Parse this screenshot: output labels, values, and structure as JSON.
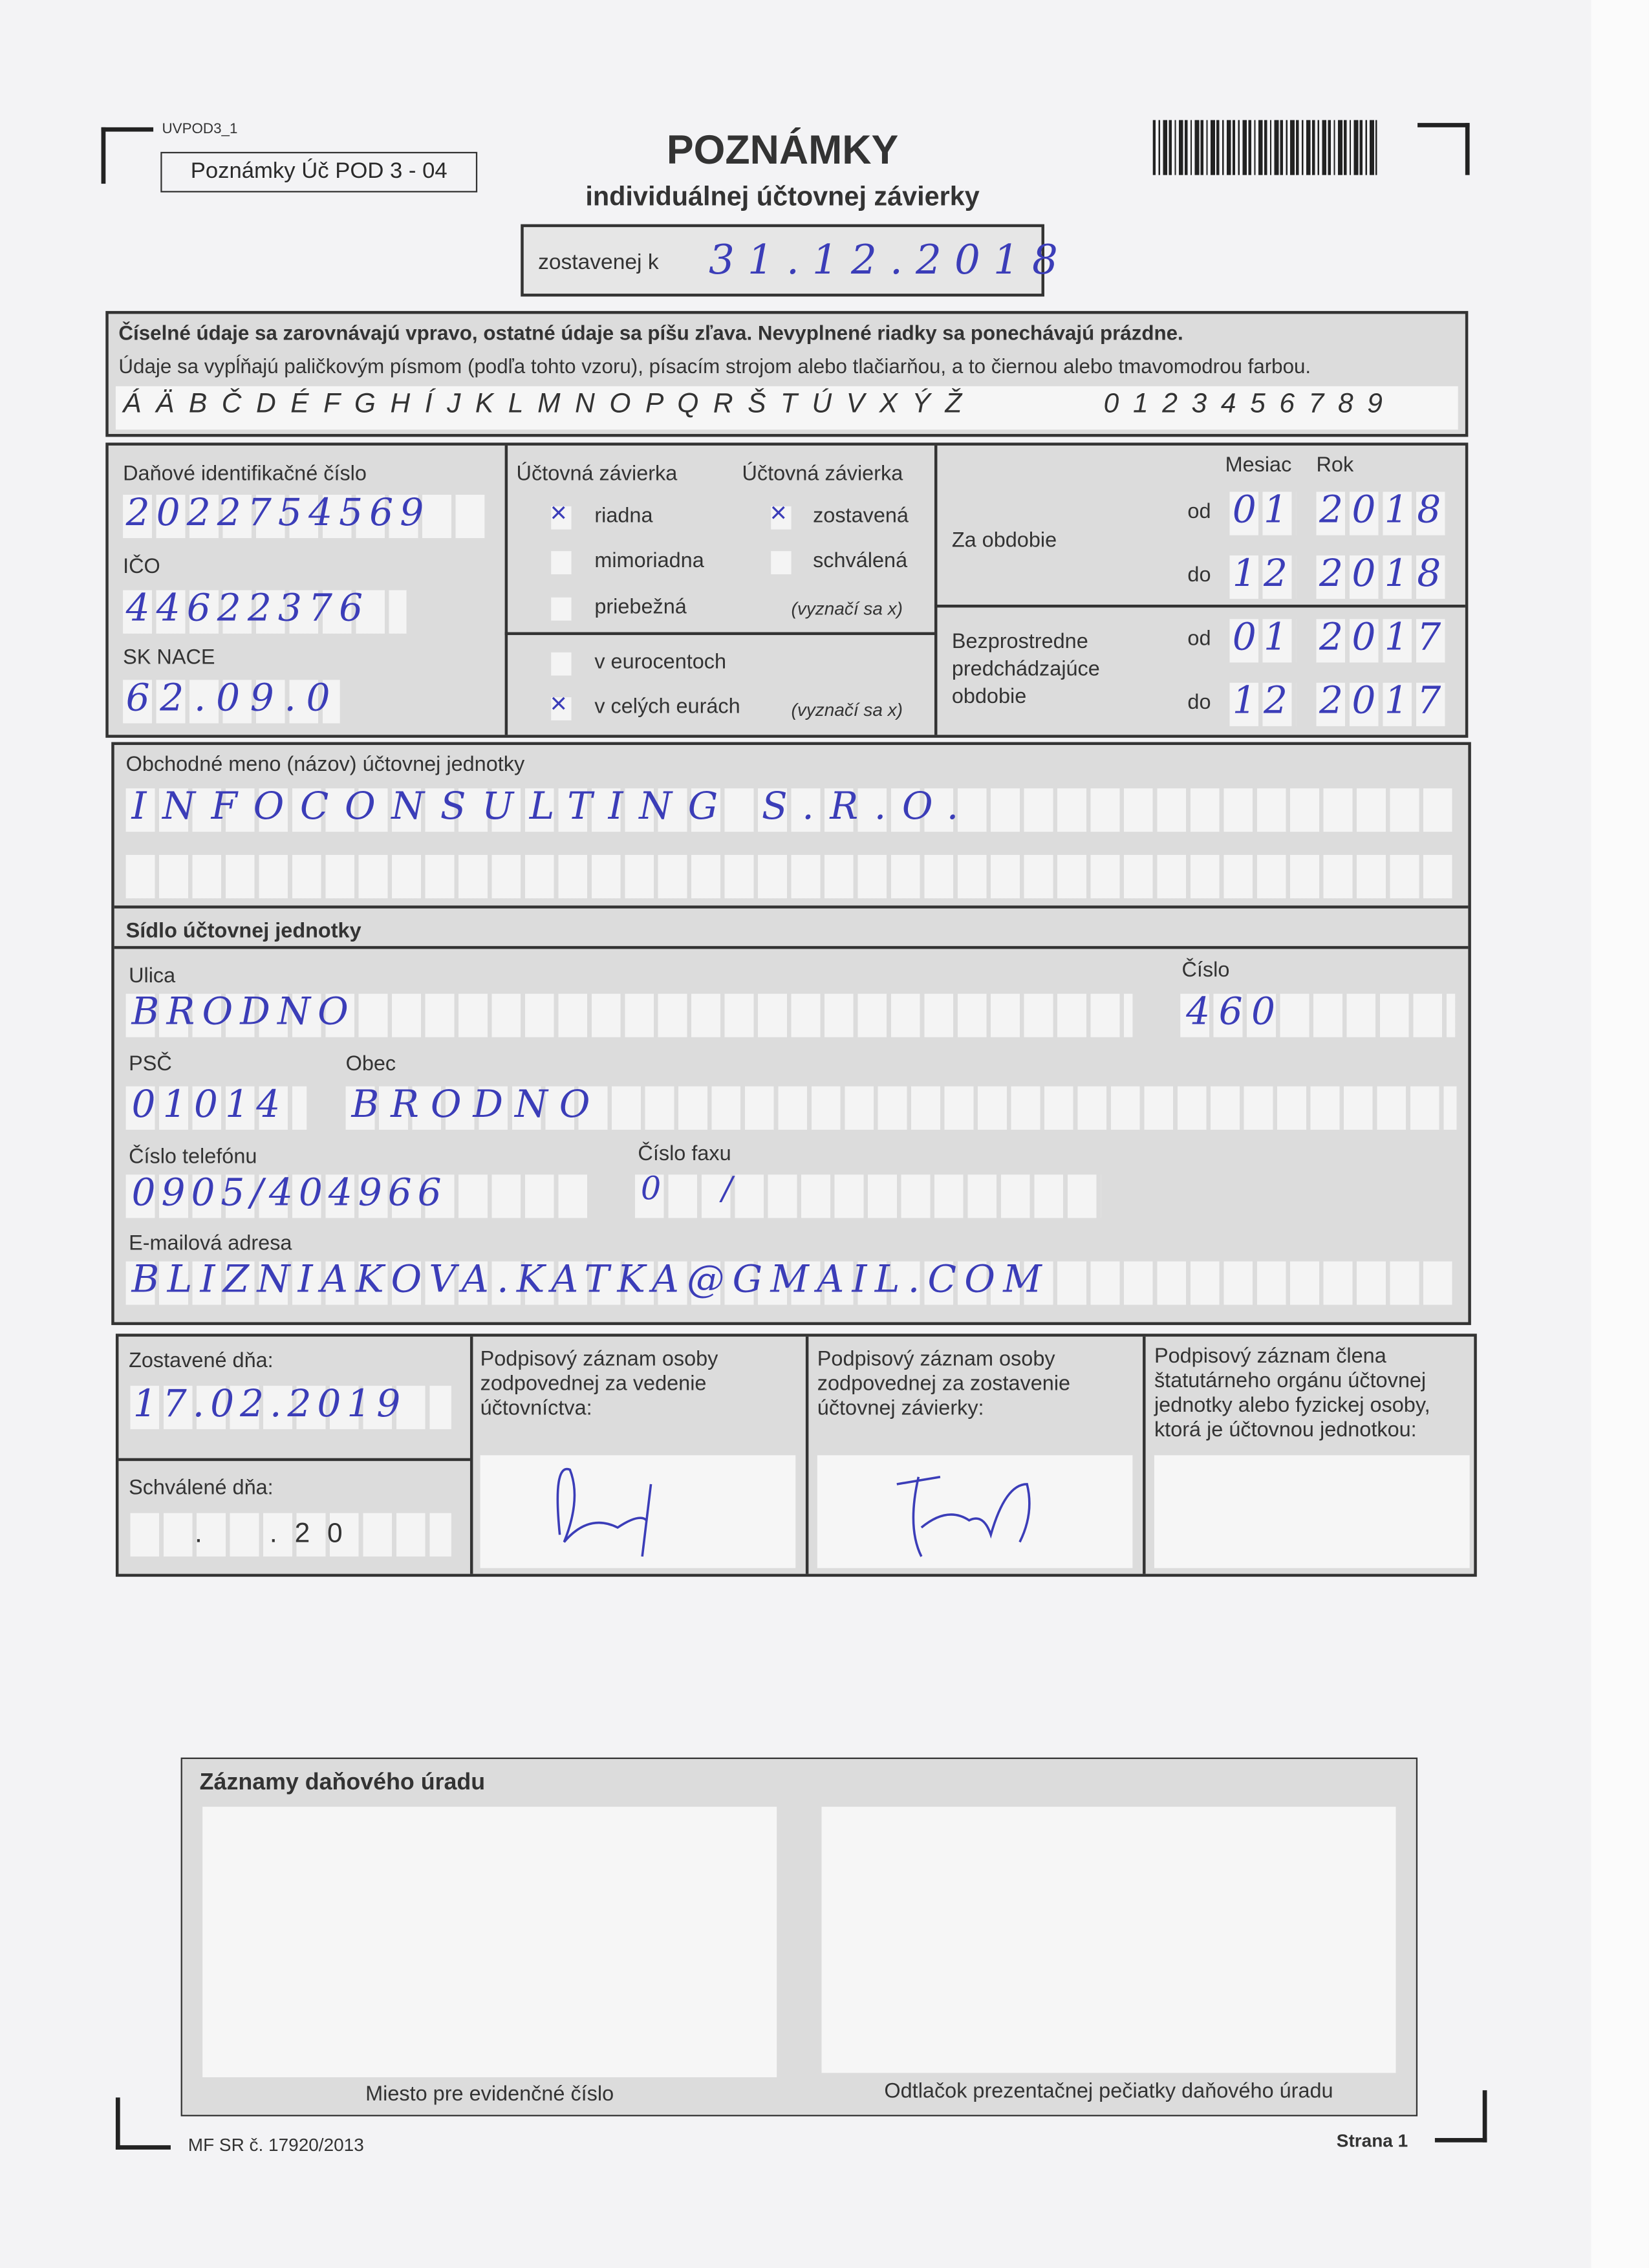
{
  "header": {
    "form_code": "UVPOD3_1",
    "form_name": "Poznámky Úč POD 3 - 04",
    "title": "POZNÁMKY",
    "subtitle": "individuálnej účtovnej závierky",
    "compiled_label": "zostavenej k",
    "compiled_date": "31.12.2018"
  },
  "instructions": {
    "line1": "Číselné údaje sa zarovnávajú vpravo, ostatné údaje sa píšu zľava. Nevyplnené riadky sa ponechávajú prázdne.",
    "line2": "Údaje sa vypĺňajú paličkovým písmom (podľa tohto vzoru), písacím strojom alebo tlačiarňou, a to čiernou alebo tmavomodrou farbou.",
    "letters": "Á Ä B Č D É F G H Í J K L M N O P Q R Š T Ú V X Ý Ž",
    "digits": "0 1 2 3 4 5 6 7 8 9"
  },
  "ids": {
    "dic_label": "Daňové identifikačné číslo",
    "dic": "2022754569",
    "ico_label": "IČO",
    "ico": "44622376",
    "nace_label": "SK NACE",
    "nace": "62.09.0"
  },
  "statement": {
    "col1_title": "Účtovná závierka",
    "col2_title": "Účtovná závierka",
    "riadna": "riadna",
    "riadna_checked": true,
    "mimoriadna": "mimoriadna",
    "mimoriadna_checked": false,
    "priebezna": "priebežná",
    "priebezna_checked": false,
    "zostavena": "zostavená",
    "zostavena_checked": true,
    "schvalena": "schválená",
    "schvalena_checked": false,
    "note1": "(vyznačí sa x)",
    "eurocent": "v eurocentoch",
    "eurocent_checked": false,
    "eur": "v celých eurách",
    "eur_checked": true,
    "note2": "(vyznačí sa x)",
    "mark": "×"
  },
  "period": {
    "month_label": "Mesiac",
    "year_label": "Rok",
    "current_label": "Za obdobie",
    "previous_label": "Bezprostredne predchádzajúce obdobie",
    "from_label": "od",
    "to_label": "do",
    "current_from_month": "01",
    "current_from_year": "2018",
    "current_to_month": "12",
    "current_to_year": "2018",
    "prev_from_month": "01",
    "prev_from_year": "2017",
    "prev_to_month": "12",
    "prev_to_year": "2017"
  },
  "entity": {
    "name_label": "Obchodné meno (názov) účtovnej jednotky",
    "name": "INFOCONSULTING S.R.O.",
    "seat_label": "Sídlo účtovnej jednotky",
    "street_label": "Ulica",
    "street": "BRODNO",
    "number_label": "Číslo",
    "number": "460",
    "zip_label": "PSČ",
    "zip": "01014",
    "city_label": "Obec",
    "city": "BRODNO",
    "phone_label": "Číslo telefónu",
    "phone": "0905/404966",
    "fax_label": "Číslo faxu",
    "fax": "0      /",
    "email_label": "E-mailová adresa",
    "email": "BLIZNIAKOVA.KATKA@GMAIL.COM"
  },
  "signatures": {
    "compiled_label": "Zostavené dňa:",
    "compiled_date": "17.02.2019",
    "approved_label": "Schválené dňa:",
    "approved_date": "  .  .20",
    "sig1_label": "Podpisový záznam osoby zodpovednej za vedenie účtovníctva:",
    "sig2_label": "Podpisový záznam osoby zodpovednej za zostavenie účtovnej závierky:",
    "sig3_label": "Podpisový záznam člena štatutárneho orgánu účtovnej jednotky alebo fyzickej osoby, ktorá je účtovnou jednotkou:"
  },
  "tax_office": {
    "title": "Záznamy daňového úradu",
    "left_caption": "Miesto pre evidenčné číslo",
    "right_caption": "Odtlačok prezentačnej pečiatky daňového úradu"
  },
  "footer": {
    "ref": "MF SR č. 17920/2013",
    "page": "Strana 1"
  },
  "colors": {
    "ink": "#3b3db8",
    "form_gray": "#dcdcdc"
  }
}
